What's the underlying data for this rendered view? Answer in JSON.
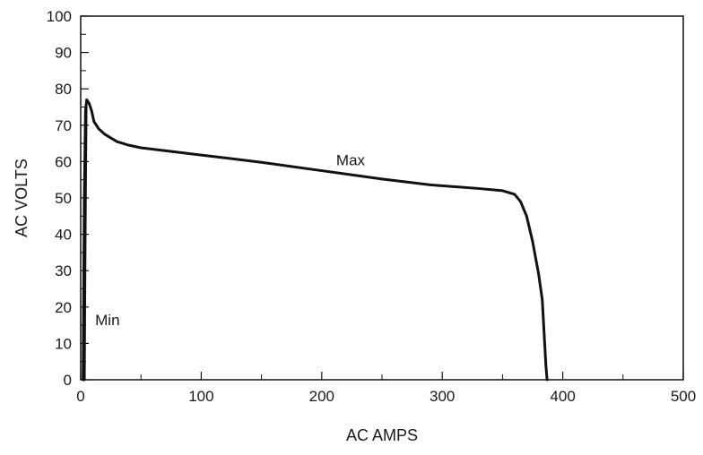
{
  "chart_data": {
    "type": "line",
    "title": "",
    "xlabel": "AC AMPS",
    "ylabel": "AC VOLTS",
    "xlim": [
      0,
      500
    ],
    "ylim": [
      0,
      100
    ],
    "x_ticks": [
      0,
      100,
      200,
      300,
      400,
      500
    ],
    "x_tick_labels": [
      "0",
      "100",
      "200",
      "300",
      "400",
      "500"
    ],
    "y_ticks": [
      0,
      10,
      20,
      30,
      40,
      50,
      60,
      70,
      80,
      90,
      100
    ],
    "y_tick_labels": [
      "0",
      "10",
      "20",
      "30",
      "40",
      "50",
      "60",
      "70",
      "80",
      "90",
      "100"
    ],
    "grid": false,
    "line_color": "#111111",
    "series": [
      {
        "name": "Max",
        "x": [
          2,
          3,
          4,
          5,
          7,
          9,
          11,
          15,
          20,
          30,
          40,
          50,
          100,
          150,
          200,
          250,
          290,
          330,
          350,
          360,
          365,
          370,
          375,
          380,
          383,
          385,
          386,
          387
        ],
        "y": [
          0,
          50,
          74,
          77,
          76,
          74,
          71,
          69,
          67.5,
          65.5,
          64.5,
          63.8,
          61.8,
          59.8,
          57.5,
          55.2,
          53.6,
          52.6,
          52,
          51,
          49,
          45,
          38,
          29,
          22,
          10,
          4,
          0
        ]
      },
      {
        "name": "Min",
        "x": [
          3,
          3.5,
          4,
          4.5
        ],
        "y": [
          0,
          30,
          55,
          75
        ]
      }
    ],
    "annotations": [
      {
        "text": "Max",
        "x": 212,
        "y": 59
      },
      {
        "text": "Min",
        "x": 12,
        "y": 15
      }
    ]
  }
}
